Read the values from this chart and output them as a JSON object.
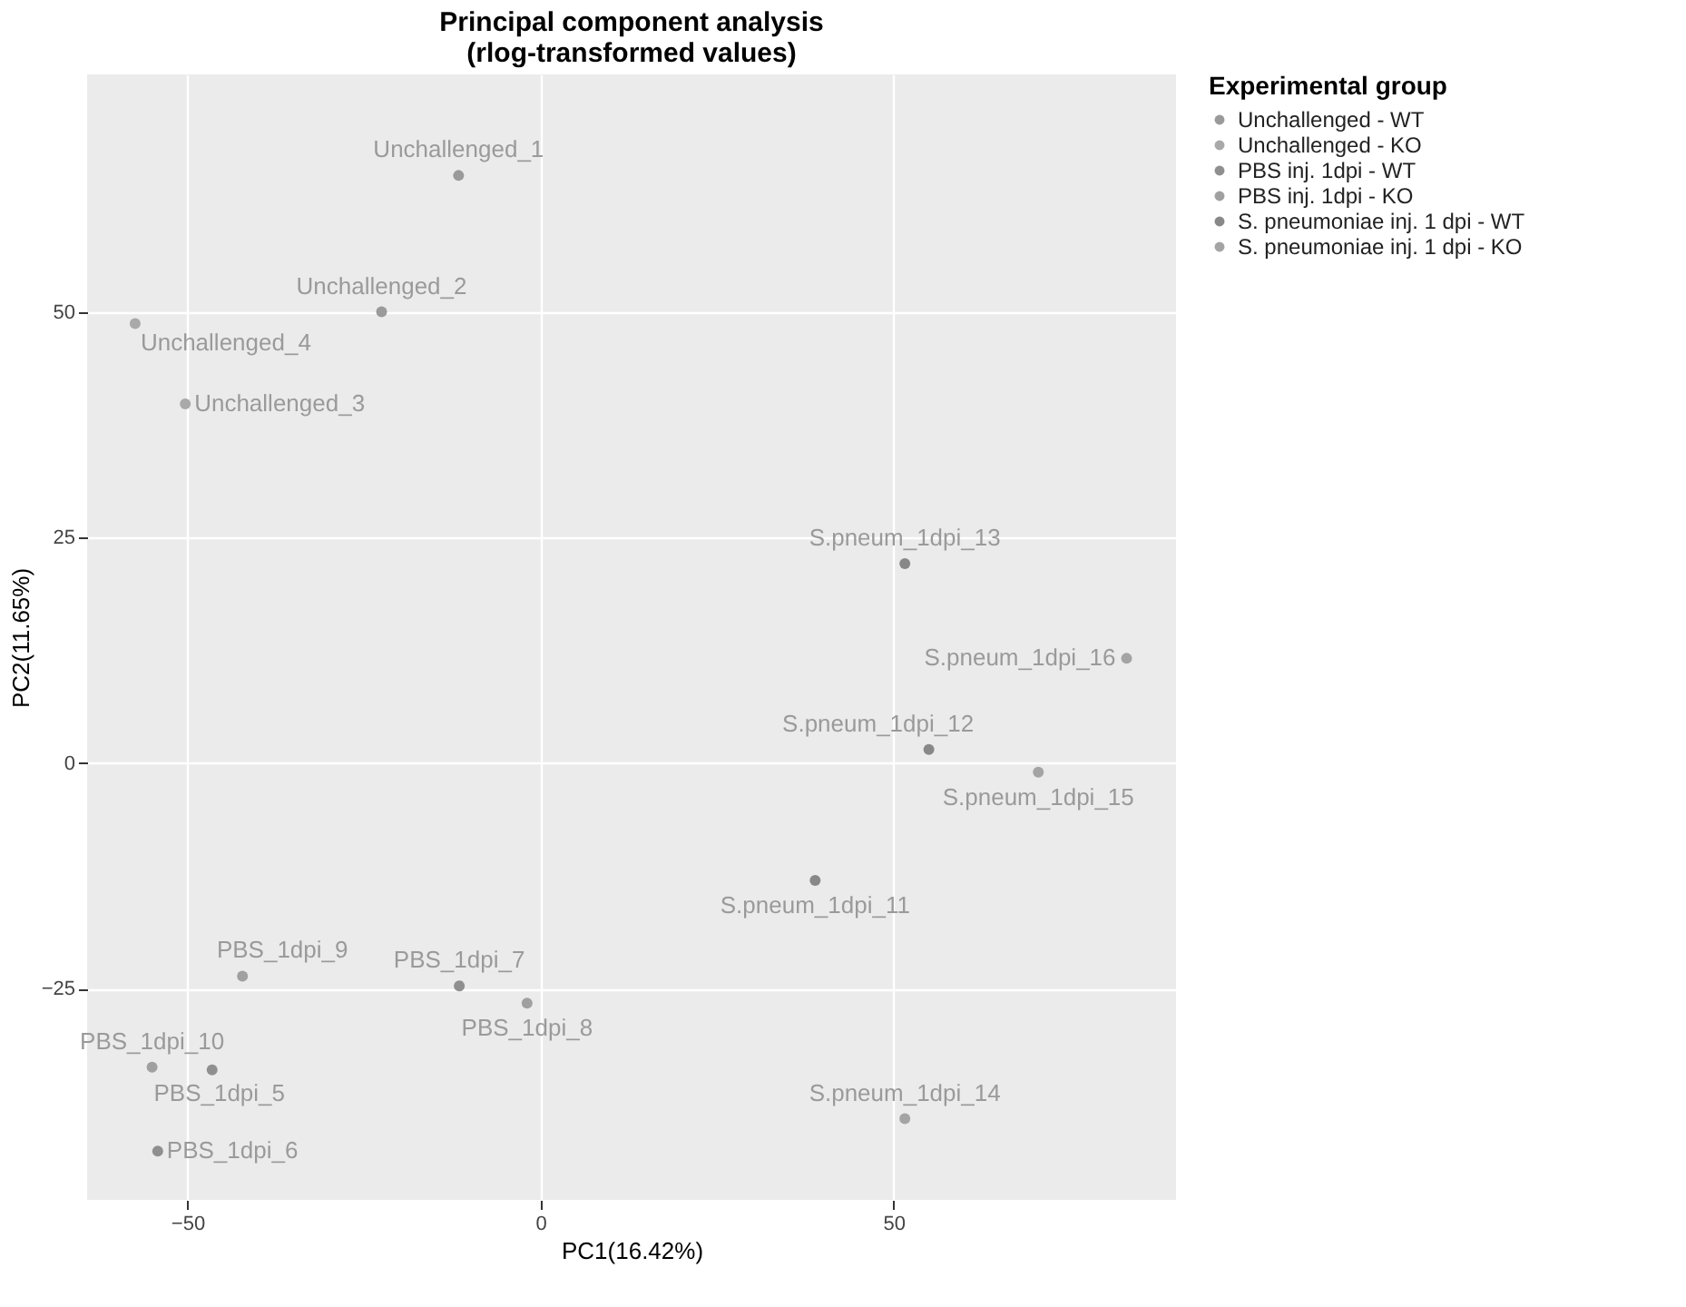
{
  "chart_data": {
    "type": "scatter",
    "title": "Principal component analysis\n(rlog-transformed values)",
    "xlabel": "PC1(16.42%)",
    "ylabel": "PC2(11.65%)",
    "legend_title": "Experimental group",
    "legend": "right",
    "grid": true,
    "marker": "circle",
    "xlim": [
      -64.2,
      90
    ],
    "ylim": [
      -48.4,
      76.3
    ],
    "xticks": [
      -50,
      0,
      50
    ],
    "yticks": [
      -25,
      0,
      25,
      50
    ],
    "series": [
      {
        "name": "Unchallenged - WT",
        "color": "#9a9a9a",
        "x": [
          -11.6,
          -22.5
        ],
        "values": [
          65.1,
          50.0
        ]
      },
      {
        "name": "Unchallenged - KO",
        "color": "#a9a9a9",
        "x": [
          -50.3,
          -57.4
        ],
        "values": [
          39.8,
          48.7
        ]
      },
      {
        "name": "PBS inj. 1dpi - WT",
        "color": "#8f8f8f",
        "x": [
          -46.5,
          -54.2,
          -11.5
        ],
        "values": [
          -34.0,
          -43.0,
          -24.7
        ]
      },
      {
        "name": "PBS inj. 1dpi - KO",
        "color": "#a0a0a0",
        "x": [
          -1.9,
          -42.2,
          -55.0
        ],
        "values": [
          -26.6,
          -23.6,
          -33.7
        ]
      },
      {
        "name": "S. pneumoniae inj. 1 dpi - WT",
        "color": "#888888",
        "x": [
          38.9,
          55.0,
          51.6
        ],
        "values": [
          -13.0,
          1.5,
          22.1
        ]
      },
      {
        "name": "S. pneumoniae inj. 1 dpi - KO",
        "color": "#a4a4a4",
        "x": [
          51.6,
          70.5,
          83.0
        ],
        "values": [
          -39.4,
          -1.0,
          11.6
        ]
      }
    ],
    "annotations": [
      {
        "text": "Unchallenged_1",
        "x": -11.6,
        "y": 65.1
      },
      {
        "text": "Unchallenged_2",
        "x": -22.5,
        "y": 50.0
      },
      {
        "text": "Unchallenged_3",
        "x": -50.3,
        "y": 39.8
      },
      {
        "text": "Unchallenged_4",
        "x": -57.4,
        "y": 48.7
      },
      {
        "text": "PBS_1dpi_5",
        "x": -46.5,
        "y": -34.0
      },
      {
        "text": "PBS_1dpi_6",
        "x": -54.2,
        "y": -43.0
      },
      {
        "text": "PBS_1dpi_7",
        "x": -11.5,
        "y": -24.7
      },
      {
        "text": "PBS_1dpi_8",
        "x": -1.9,
        "y": -26.6
      },
      {
        "text": "PBS_1dpi_9",
        "x": -42.2,
        "y": -23.6
      },
      {
        "text": "PBS_1dpi_10",
        "x": -55.0,
        "y": -33.7
      },
      {
        "text": "S.pneum_1dpi_11",
        "x": 38.9,
        "y": -13.0
      },
      {
        "text": "S.pneum_1dpi_12",
        "x": 55.0,
        "y": 1.5
      },
      {
        "text": "S.pneum_1dpi_13",
        "x": 51.6,
        "y": 22.1
      },
      {
        "text": "S.pneum_1dpi_14",
        "x": 51.6,
        "y": -39.4
      },
      {
        "text": "S.pneum_1dpi_15",
        "x": 70.5,
        "y": -1.0
      },
      {
        "text": "S.pneum_1dpi_16",
        "x": 83.0,
        "y": 11.6
      }
    ]
  }
}
